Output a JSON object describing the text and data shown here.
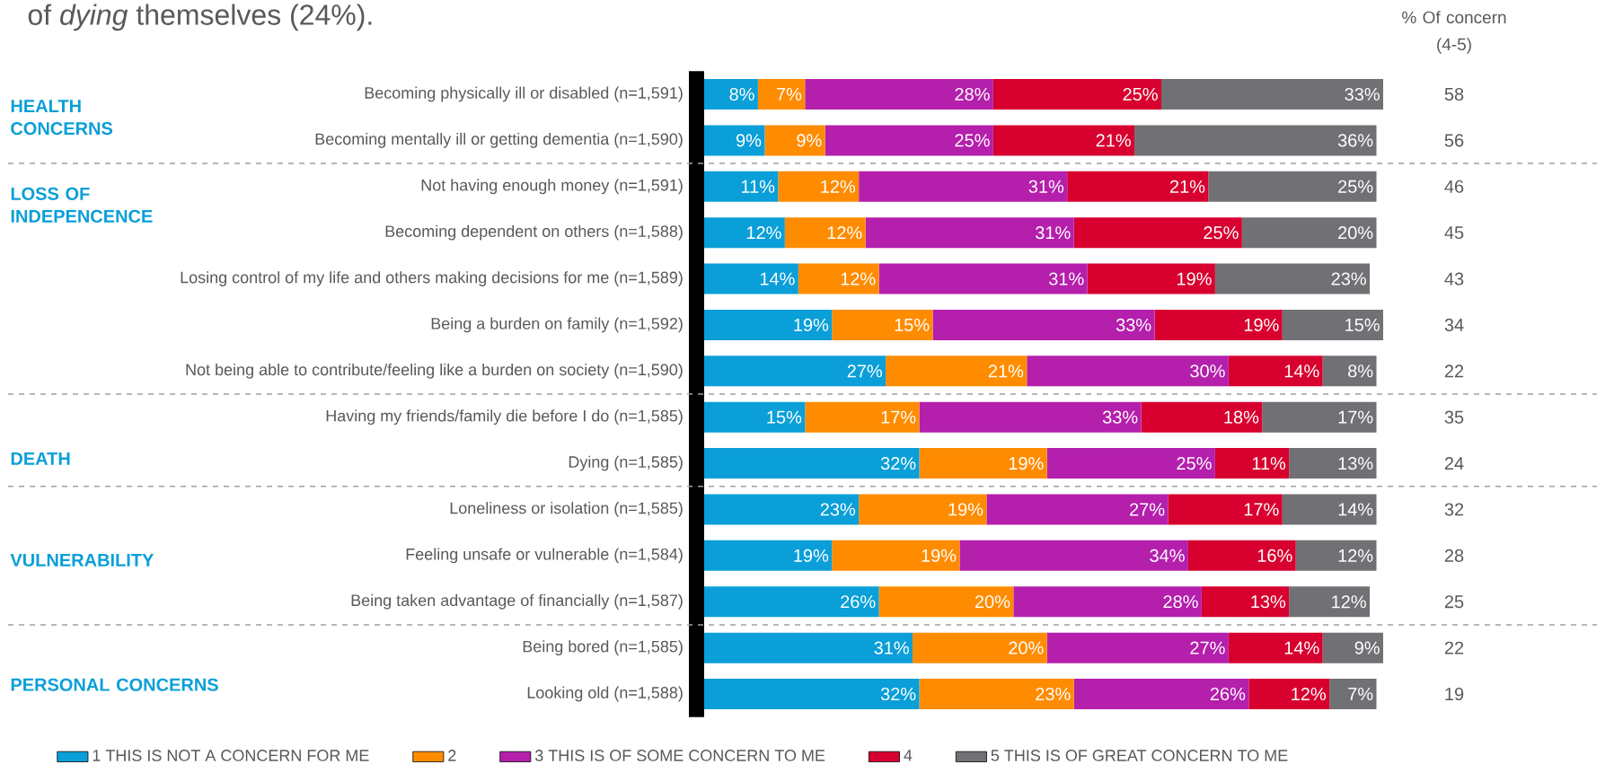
{
  "chart_data": {
    "type": "bar",
    "orientation": "horizontal",
    "stacked": true,
    "title": "of *dying* themselves (24%).",
    "categories": [
      "Becoming physically ill or disabled (n=1,591)",
      "Becoming mentally ill or getting dementia (n=1,590)",
      "Not having enough money (n=1,591)",
      "Becoming dependent on others (n=1,588)",
      "Losing control of my life and others making decisions for me (n=1,589)",
      "Being a burden on family (n=1,592)",
      "Not being able to contribute/feeling like a burden on society (n=1,590)",
      "Having my friends/family die before I do (n=1,585)",
      "Dying (n=1,585)",
      "Loneliness or isolation (n=1,585)",
      "Feeling unsafe or vulnerable (n=1,584)",
      "Being taken advantage of financially (n=1,587)",
      "Being bored (n=1,585)",
      "Looking old (n=1,588)"
    ],
    "series": [
      {
        "name": "1 THIS IS NOT A CONCERN FOR ME",
        "color": "#0a9fd8",
        "values": [
          8,
          9,
          11,
          12,
          14,
          19,
          27,
          15,
          32,
          23,
          19,
          26,
          31,
          32
        ],
        "value_labels": [
          "8%",
          "9%",
          "11%",
          "12%",
          "14%",
          "19%",
          "27%",
          "15%",
          "32%",
          "23%",
          "19%",
          "26%",
          "31%",
          "32%"
        ]
      },
      {
        "name": "2",
        "color": "#ff8c00",
        "values": [
          7,
          9,
          12,
          12,
          12,
          15,
          21,
          17,
          19,
          19,
          19,
          20,
          20,
          23
        ],
        "value_labels": [
          "7%",
          "9%",
          "12%",
          "12%",
          "12%",
          "15%",
          "21%",
          "17%",
          "19%",
          "19%",
          "19%",
          "20%",
          "20%",
          "23%"
        ]
      },
      {
        "name": "3 THIS IS OF SOME CONCERN TO ME",
        "color": "#b41fac",
        "values": [
          28,
          25,
          31,
          31,
          31,
          33,
          30,
          33,
          25,
          27,
          34,
          28,
          27,
          26
        ],
        "value_labels": [
          "28%",
          "25%",
          "31%",
          "31%",
          "31%",
          "33%",
          "30%",
          "33%",
          "25%",
          "27%",
          "34%",
          "28%",
          "27%",
          "26%"
        ]
      },
      {
        "name": "4",
        "color": "#d7002f",
        "values": [
          25,
          21,
          21,
          25,
          19,
          19,
          14,
          18,
          11,
          17,
          16,
          13,
          14,
          12
        ],
        "value_labels": [
          "25%",
          "21%",
          "21%",
          "25%",
          "19%",
          "19%",
          "14%",
          "18%",
          "11%",
          "17%",
          "16%",
          "13%",
          "14%",
          "12%"
        ]
      },
      {
        "name": "5 THIS IS OF GREAT CONCERN TO ME",
        "color": "#707075",
        "values": [
          33,
          36,
          25,
          20,
          23,
          15,
          8,
          17,
          13,
          14,
          12,
          12,
          9,
          7
        ],
        "value_labels": [
          "33%",
          "36%",
          "25%",
          "20%",
          "23%",
          "15%",
          "8%",
          "17%",
          "13%",
          "14%",
          "12%",
          "12%",
          "9%",
          "7%"
        ]
      }
    ],
    "annotations": [
      "% Of concern (4-5)",
      "HEALTH CONCERNS",
      "LOSS OF INDEPENCENCE",
      "DEATH",
      "VULNERABILITY",
      "PERSONAL CONCERNS",
      "58",
      "56",
      "46",
      "45",
      "43",
      "34",
      "22",
      "35",
      "24",
      "32",
      "28",
      "25",
      "22",
      "19"
    ],
    "legend": "bottom"
  }
}
